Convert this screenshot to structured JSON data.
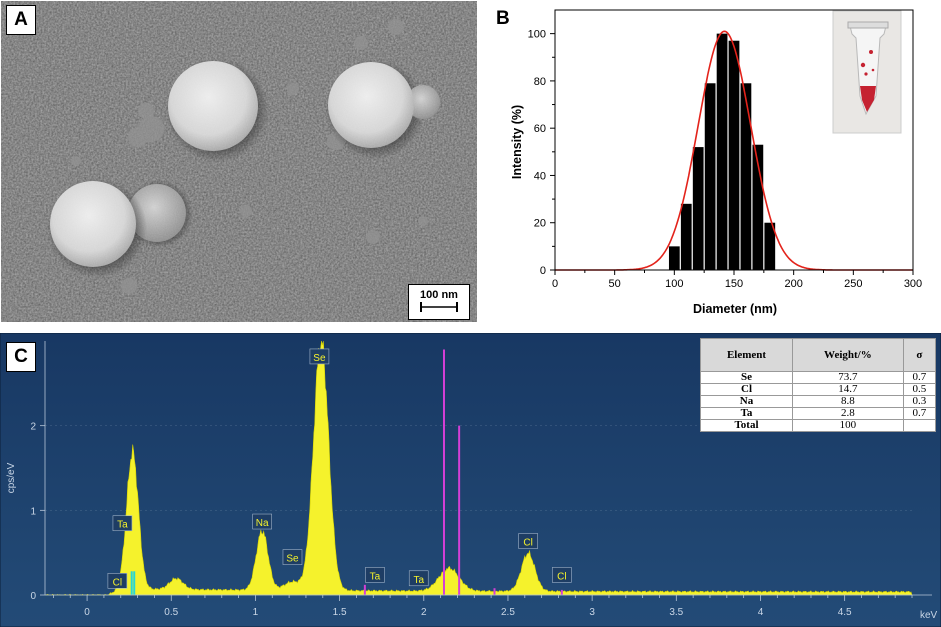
{
  "panel_a": {
    "label": "A",
    "scale_bar": "100 nm"
  },
  "chart_data": [
    {
      "type": "bar",
      "panel": "B",
      "xlabel": "Diameter (nm)",
      "ylabel": "Intensity (%)",
      "xlim": [
        0,
        300
      ],
      "ylim": [
        0,
        110
      ],
      "x_ticks": [
        0,
        50,
        100,
        150,
        200,
        250,
        300
      ],
      "y_ticks": [
        0,
        20,
        40,
        60,
        80,
        100
      ],
      "bin_width": 10,
      "bars": [
        {
          "x": 100,
          "value": 10
        },
        {
          "x": 110,
          "value": 28
        },
        {
          "x": 120,
          "value": 52
        },
        {
          "x": 130,
          "value": 79
        },
        {
          "x": 140,
          "value": 100
        },
        {
          "x": 150,
          "value": 97
        },
        {
          "x": 160,
          "value": 79
        },
        {
          "x": 170,
          "value": 53
        },
        {
          "x": 180,
          "value": 20
        }
      ],
      "fit_curve": {
        "type": "gaussian",
        "center": 142,
        "sigma": 22,
        "peak": 101,
        "color": "#e3231b"
      }
    },
    {
      "type": "area",
      "panel": "C",
      "xlabel": "keV",
      "ylabel": "cps/eV",
      "xlim": [
        -0.25,
        4.9
      ],
      "ylim": [
        0,
        3.0
      ],
      "x_ticks": [
        0,
        0.5,
        1,
        1.5,
        2,
        2.5,
        3,
        3.5,
        4,
        4.5
      ],
      "x_tick_labels": [
        "0",
        "0.5",
        "1",
        "1.5",
        "2",
        "2.5",
        "3",
        "3.5",
        "4",
        "4.5"
      ],
      "y_ticks": [
        0,
        1,
        2
      ],
      "peaks": [
        {
          "x": 0.27,
          "height": 1.62,
          "width": 0.035
        },
        {
          "x": 0.53,
          "height": 0.13,
          "width": 0.04
        },
        {
          "x": 1.04,
          "height": 0.7,
          "width": 0.035
        },
        {
          "x": 1.22,
          "height": 0.1,
          "width": 0.05
        },
        {
          "x": 1.39,
          "height": 2.95,
          "width": 0.045
        },
        {
          "x": 2.15,
          "height": 0.27,
          "width": 0.06
        },
        {
          "x": 2.62,
          "height": 0.45,
          "width": 0.04
        }
      ],
      "element_labels": [
        {
          "text": "Cl",
          "x": 0.18,
          "y": 0.15
        },
        {
          "text": "Ta",
          "x": 0.21,
          "y": 0.83
        },
        {
          "text": "Na",
          "x": 1.04,
          "y": 0.85
        },
        {
          "text": "Se",
          "x": 1.22,
          "y": 0.43
        },
        {
          "text": "Se",
          "x": 1.38,
          "y": 2.8
        },
        {
          "text": "Ta",
          "x": 1.71,
          "y": 0.22
        },
        {
          "text": "Ta",
          "x": 1.97,
          "y": 0.18
        },
        {
          "text": "Cl",
          "x": 2.62,
          "y": 0.62
        },
        {
          "text": "Cl",
          "x": 2.82,
          "y": 0.22
        }
      ],
      "markers": [
        {
          "x": 0.265,
          "height": 0.28,
          "color": "#27d6d6"
        },
        {
          "x": 0.28,
          "height": 0.28,
          "color": "#27d6d6"
        },
        {
          "x": 1.65,
          "height": 0.12,
          "color": "#d43fd6"
        },
        {
          "x": 2.12,
          "height": 2.9,
          "color": "#d43fd6"
        },
        {
          "x": 2.21,
          "height": 2.0,
          "color": "#d43fd6"
        },
        {
          "x": 2.42,
          "height": 0.08,
          "color": "#d43fd6"
        },
        {
          "x": 2.82,
          "height": 0.06,
          "color": "#d43fd6"
        }
      ],
      "table": {
        "headers": [
          "Element",
          "Weight/%",
          "σ"
        ],
        "rows": [
          [
            "Se",
            "73.7",
            "0.7"
          ],
          [
            "Cl",
            "14.7",
            "0.5"
          ],
          [
            "Na",
            "8.8",
            "0.3"
          ],
          [
            "Ta",
            "2.8",
            "0.7"
          ],
          [
            "Total",
            "100",
            ""
          ]
        ]
      }
    }
  ],
  "labels": {
    "b": "B",
    "c": "C"
  }
}
